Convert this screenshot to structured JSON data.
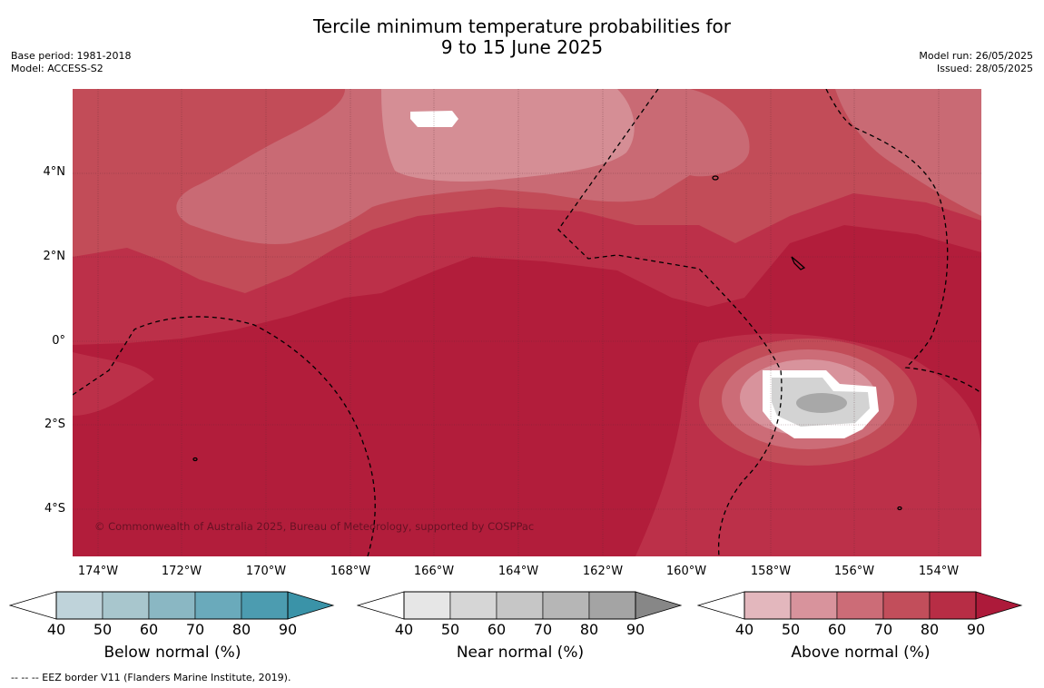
{
  "title": {
    "line1": "Tercile minimum temperature probabilities for",
    "line2": "9 to 15 June 2025"
  },
  "meta_left": {
    "base_period": "Base period: 1981-2018",
    "model": "Model: ACCESS-S2"
  },
  "meta_right": {
    "model_run": "Model run: 26/05/2025",
    "issued": "Issued: 28/05/2025"
  },
  "map": {
    "copyright": "© Commonwealth of Australia 2025, Bureau of Meteorology, supported by COSPPac",
    "lat_labels": [
      "4°N",
      "2°N",
      "0°",
      "2°S",
      "4°S"
    ],
    "lon_labels": [
      "174°W",
      "172°W",
      "170°W",
      "168°W",
      "166°W",
      "164°W",
      "162°W",
      "160°W",
      "158°W",
      "156°W",
      "154°W"
    ]
  },
  "colorbars": {
    "ticks": [
      "40",
      "50",
      "60",
      "70",
      "80",
      "90"
    ],
    "below": {
      "label": "Below normal (%)",
      "colors": [
        "#bfd3da",
        "#a8c6cd",
        "#8ab7c3",
        "#6aaabb",
        "#4c9cb0",
        "#3a93a8"
      ]
    },
    "near": {
      "label": "Near normal (%)",
      "colors": [
        "#e6e6e6",
        "#d6d6d6",
        "#c6c6c6",
        "#b6b6b6",
        "#a4a4a4",
        "#878787"
      ]
    },
    "above": {
      "label": "Above normal (%)",
      "colors": [
        "#e3b7bd",
        "#d8939c",
        "#cc6c77",
        "#c24e5b",
        "#b72d45",
        "#ad1a3a"
      ]
    }
  },
  "footer": "--  --  -- EEZ border V11 (Flanders Marine Institute, 2019)."
}
